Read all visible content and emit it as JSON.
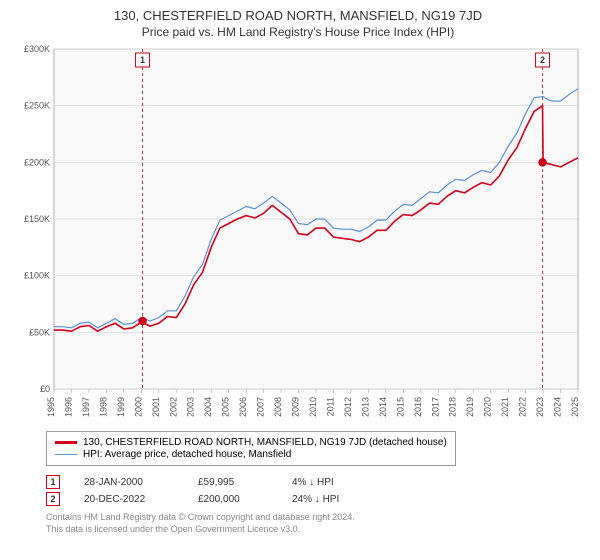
{
  "header": {
    "title": "130, CHESTERFIELD ROAD NORTH, MANSFIELD, NG19 7JD",
    "subtitle": "Price paid vs. HM Land Registry's House Price Index (HPI)"
  },
  "chart": {
    "type": "line",
    "plot_bg": "#f9f9fa",
    "border_color": "#b0b0b0",
    "grid_color": "#d8d8d8",
    "ylim": [
      0,
      300000
    ],
    "ytick_step": 50000,
    "ytick_prefix": "£",
    "ytick_suffix": "K",
    "yticks": [
      "£0",
      "£50K",
      "£100K",
      "£150K",
      "£200K",
      "£250K",
      "£300K"
    ],
    "xlim": [
      1995,
      2025
    ],
    "xticks": [
      1995,
      1996,
      1997,
      1998,
      1999,
      2000,
      2001,
      2002,
      2003,
      2004,
      2005,
      2006,
      2007,
      2008,
      2009,
      2010,
      2011,
      2012,
      2013,
      2014,
      2015,
      2016,
      2017,
      2018,
      2019,
      2020,
      2021,
      2022,
      2023,
      2024,
      2025
    ],
    "series": [
      {
        "name": "price_paid",
        "color": "#d4001a",
        "width": 1.6,
        "data": [
          [
            1995,
            52000
          ],
          [
            1995.5,
            50000
          ],
          [
            1996,
            53000
          ],
          [
            1996.5,
            55000
          ],
          [
            1997,
            54000
          ],
          [
            1997.5,
            53000
          ],
          [
            1998,
            55000
          ],
          [
            1998.5,
            56000
          ],
          [
            1999,
            55000
          ],
          [
            1999.5,
            54000
          ],
          [
            2000,
            57000
          ],
          [
            2000.5,
            57500
          ],
          [
            2001,
            58000
          ],
          [
            2001.5,
            62000
          ],
          [
            2002,
            65000
          ],
          [
            2002.5,
            75000
          ],
          [
            2003,
            90000
          ],
          [
            2003.5,
            105000
          ],
          [
            2004,
            125000
          ],
          [
            2004.5,
            140000
          ],
          [
            2005,
            148000
          ],
          [
            2005.5,
            150000
          ],
          [
            2006,
            151000
          ],
          [
            2006.5,
            153000
          ],
          [
            2007,
            155000
          ],
          [
            2007.5,
            160000
          ],
          [
            2008,
            158000
          ],
          [
            2008.5,
            150000
          ],
          [
            2009,
            135000
          ],
          [
            2009.5,
            138000
          ],
          [
            2010,
            142000
          ],
          [
            2010.5,
            140000
          ],
          [
            2011,
            136000
          ],
          [
            2011.5,
            133000
          ],
          [
            2012,
            130000
          ],
          [
            2012.5,
            132000
          ],
          [
            2013,
            134000
          ],
          [
            2013.5,
            138000
          ],
          [
            2014,
            142000
          ],
          [
            2014.5,
            148000
          ],
          [
            2015,
            152000
          ],
          [
            2015.5,
            155000
          ],
          [
            2016,
            158000
          ],
          [
            2016.5,
            162000
          ],
          [
            2017,
            165000
          ],
          [
            2017.5,
            170000
          ],
          [
            2018,
            173000
          ],
          [
            2018.5,
            175000
          ],
          [
            2019,
            178000
          ],
          [
            2019.5,
            180000
          ],
          [
            2020,
            182000
          ],
          [
            2020.5,
            188000
          ],
          [
            2021,
            200000
          ],
          [
            2021.5,
            215000
          ],
          [
            2022,
            230000
          ],
          [
            2022.5,
            243000
          ],
          [
            2022.97,
            252000
          ],
          [
            2023,
            200000
          ],
          [
            2023.5,
            196000
          ],
          [
            2024,
            198000
          ],
          [
            2024.5,
            200000
          ],
          [
            2025,
            202000
          ]
        ]
      },
      {
        "name": "hpi",
        "color": "#5b8fd6",
        "width": 1.2,
        "data": [
          [
            1995,
            55000
          ],
          [
            1995.5,
            53000
          ],
          [
            1996,
            56000
          ],
          [
            1996.5,
            58000
          ],
          [
            1997,
            57000
          ],
          [
            1997.5,
            56000
          ],
          [
            1998,
            58000
          ],
          [
            1998.5,
            60000
          ],
          [
            1999,
            59000
          ],
          [
            1999.5,
            58000
          ],
          [
            2000,
            61000
          ],
          [
            2000.5,
            62000
          ],
          [
            2001,
            63000
          ],
          [
            2001.5,
            67000
          ],
          [
            2002,
            71000
          ],
          [
            2002.5,
            82000
          ],
          [
            2003,
            97000
          ],
          [
            2003.5,
            112000
          ],
          [
            2004,
            132000
          ],
          [
            2004.5,
            147000
          ],
          [
            2005,
            155000
          ],
          [
            2005.5,
            157000
          ],
          [
            2006,
            159000
          ],
          [
            2006.5,
            161000
          ],
          [
            2007,
            164000
          ],
          [
            2007.5,
            168000
          ],
          [
            2008,
            166000
          ],
          [
            2008.5,
            158000
          ],
          [
            2009,
            144000
          ],
          [
            2009.5,
            147000
          ],
          [
            2010,
            150000
          ],
          [
            2010.5,
            148000
          ],
          [
            2011,
            144000
          ],
          [
            2011.5,
            141000
          ],
          [
            2012,
            139000
          ],
          [
            2012.5,
            141000
          ],
          [
            2013,
            143000
          ],
          [
            2013.5,
            147000
          ],
          [
            2014,
            151000
          ],
          [
            2014.5,
            157000
          ],
          [
            2015,
            161000
          ],
          [
            2015.5,
            164000
          ],
          [
            2016,
            168000
          ],
          [
            2016.5,
            172000
          ],
          [
            2017,
            175000
          ],
          [
            2017.5,
            180000
          ],
          [
            2018,
            183000
          ],
          [
            2018.5,
            186000
          ],
          [
            2019,
            189000
          ],
          [
            2019.5,
            191000
          ],
          [
            2020,
            193000
          ],
          [
            2020.5,
            200000
          ],
          [
            2021,
            212000
          ],
          [
            2021.5,
            228000
          ],
          [
            2022,
            243000
          ],
          [
            2022.5,
            255000
          ],
          [
            2023,
            260000
          ],
          [
            2023.3,
            255000
          ],
          [
            2023.6,
            252000
          ],
          [
            2024,
            256000
          ],
          [
            2024.5,
            260000
          ],
          [
            2025,
            263000
          ]
        ]
      }
    ],
    "sale_markers": [
      {
        "n": "1",
        "x": 2000.07,
        "y": 59995,
        "color": "#d4001a"
      },
      {
        "n": "2",
        "x": 2022.97,
        "y": 200000,
        "color": "#d4001a"
      }
    ]
  },
  "legend": {
    "items": [
      {
        "label": "130, CHESTERFIELD ROAD NORTH, MANSFIELD, NG19 7JD (detached house)",
        "color": "#d4001a",
        "width": 2
      },
      {
        "label": "HPI: Average price, detached house, Mansfield",
        "color": "#5b8fd6",
        "width": 1.2
      }
    ]
  },
  "sales": [
    {
      "n": "1",
      "color": "#d4001a",
      "date": "28-JAN-2000",
      "price": "£59,995",
      "pct": "4% ↓ HPI"
    },
    {
      "n": "2",
      "color": "#d4001a",
      "date": "20-DEC-2022",
      "price": "£200,000",
      "pct": "24% ↓ HPI"
    }
  ],
  "footer": {
    "line1": "Contains HM Land Registry data © Crown copyright and database right 2024.",
    "line2": "This data is licensed under the Open Government Licence v3.0."
  }
}
